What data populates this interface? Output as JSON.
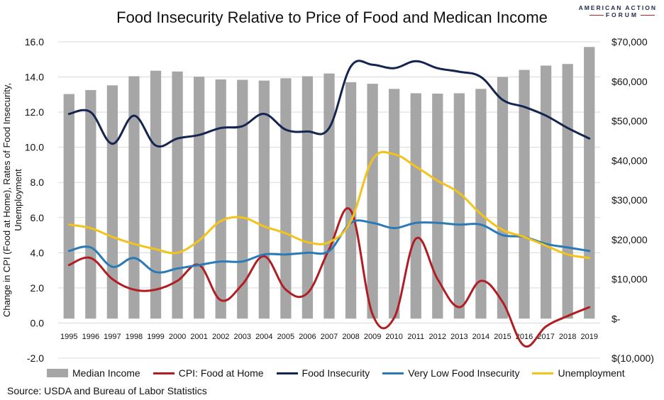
{
  "brand": {
    "line1": "AMERICAN ACTION",
    "line2": "FORUM"
  },
  "chart_data": {
    "type": "bar",
    "title": "Food Insecurity Relative to Price of Food and Medican Income",
    "ylabel_left": "Change in CPI (Food at Home), Rates of Food Insecurity, Unemployment",
    "ylabel_right": "",
    "ylim_left": [
      -2,
      16
    ],
    "ylim_right": [
      -10000,
      70000
    ],
    "left_ticks": [
      "16.0",
      "14.0",
      "12.0",
      "10.0",
      "8.0",
      "6.0",
      "4.0",
      "2.0",
      "0.0",
      "-2.0"
    ],
    "right_ticks": [
      "$70,000",
      "$60,000",
      "$50,000",
      "$40,000",
      "$30,000",
      "$20,000",
      "$10,000",
      "$-",
      "$(10,000)"
    ],
    "categories": [
      "1995",
      "1996",
      "1997",
      "1998",
      "1999",
      "2000",
      "2001",
      "2002",
      "2003",
      "2004",
      "2005",
      "2006",
      "2007",
      "2008",
      "2009",
      "2010",
      "2011",
      "2012",
      "2013",
      "2014",
      "2015",
      "2016",
      "2017",
      "2018",
      "2019"
    ],
    "series": [
      {
        "name": "Median Income",
        "type": "bar",
        "axis": "right",
        "color": "#a6a6a6",
        "values": [
          56800,
          57800,
          59000,
          61300,
          62700,
          62500,
          61200,
          60500,
          60400,
          60200,
          60800,
          61300,
          62000,
          59800,
          59400,
          58100,
          57000,
          56900,
          57000,
          58100,
          61100,
          62900,
          64000,
          64400,
          68700
        ]
      },
      {
        "name": "CPI: Food at Home",
        "type": "line",
        "axis": "left",
        "color": "#b01e23",
        "values": [
          3.3,
          3.7,
          2.5,
          1.9,
          1.9,
          2.4,
          3.3,
          1.3,
          2.2,
          3.8,
          1.9,
          1.7,
          4.2,
          6.4,
          0.5,
          0.3,
          4.8,
          2.5,
          0.9,
          2.4,
          1.2,
          -1.3,
          -0.2,
          0.4,
          0.9
        ]
      },
      {
        "name": "Food Insecurity",
        "type": "line",
        "axis": "left",
        "color": "#14254f",
        "values": [
          11.9,
          12.0,
          10.2,
          11.8,
          10.1,
          10.5,
          10.7,
          11.1,
          11.2,
          11.9,
          11.0,
          10.9,
          11.1,
          14.6,
          14.7,
          14.5,
          14.9,
          14.5,
          14.3,
          14.0,
          12.7,
          12.3,
          11.8,
          11.1,
          10.5
        ]
      },
      {
        "name": "Very Low Food Insecurity",
        "type": "line",
        "axis": "left",
        "color": "#2a7ab8",
        "values": [
          4.1,
          4.3,
          3.2,
          3.7,
          2.9,
          3.1,
          3.3,
          3.5,
          3.5,
          3.9,
          3.9,
          4.0,
          4.1,
          5.7,
          5.7,
          5.4,
          5.7,
          5.7,
          5.6,
          5.6,
          5.0,
          4.9,
          4.5,
          4.3,
          4.1
        ]
      },
      {
        "name": "Unemployment",
        "type": "line",
        "axis": "left",
        "color": "#f2c319",
        "values": [
          5.6,
          5.4,
          4.9,
          4.5,
          4.2,
          4.0,
          4.7,
          5.8,
          6.0,
          5.5,
          5.1,
          4.6,
          4.6,
          5.8,
          9.3,
          9.6,
          8.9,
          8.1,
          7.4,
          6.2,
          5.3,
          4.9,
          4.4,
          3.9,
          3.7
        ]
      }
    ],
    "grid": "horizontal",
    "legend_position": "bottom"
  },
  "source": "Source: USDA and Bureau of Labor Statistics"
}
